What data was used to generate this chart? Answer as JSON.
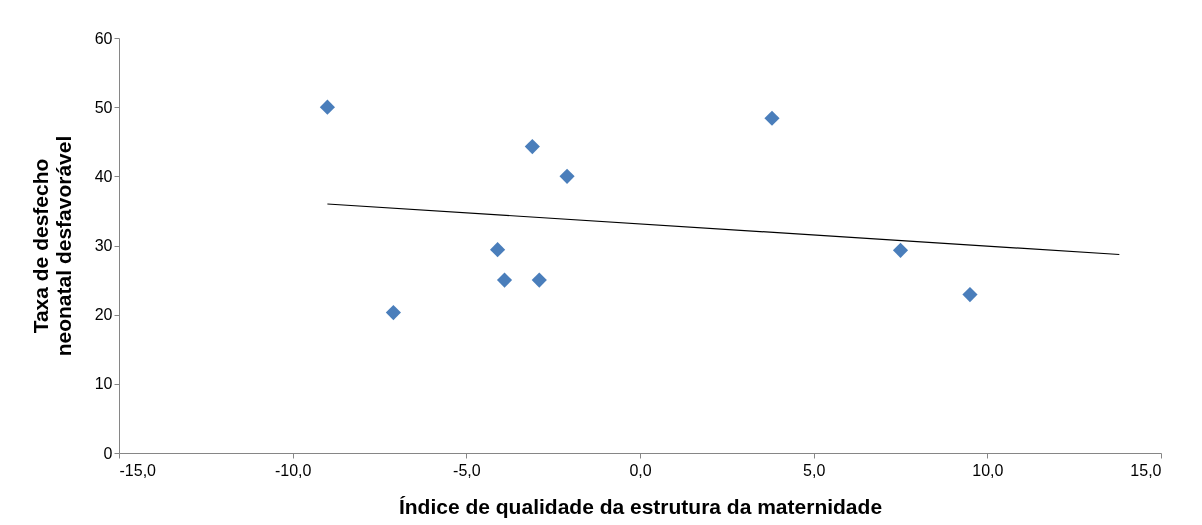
{
  "chart_data": {
    "type": "scatter",
    "xlabel": "Índice de qualidade da estrutura da maternidade",
    "ylabel": "Taxa de desfecho neonatal desfavorável",
    "x": [
      -9.0,
      -7.1,
      -4.1,
      -3.9,
      -3.1,
      -2.9,
      -2.1,
      3.8,
      7.5,
      9.5
    ],
    "series": [
      {
        "color": "#4a7ebb",
        "marker": "diamond",
        "values": [
          50.0,
          20.3,
          29.4,
          25.0,
          44.3,
          25.0,
          40.0,
          48.4,
          29.3,
          22.9
        ]
      },
      {
        "type": "line",
        "color": "#000000",
        "marker": "none",
        "x": [
          -9.0,
          13.8
        ],
        "values": [
          36.0,
          28.7
        ]
      }
    ],
    "grid": false,
    "xlim": [
      -15,
      15
    ],
    "xticks": [
      {
        "value": -15,
        "label": "-15,0"
      },
      {
        "value": -10,
        "label": "-10,0"
      },
      {
        "value": -5,
        "label": "-5,0"
      },
      {
        "value": 0,
        "label": "0,0"
      },
      {
        "value": 5,
        "label": "5,0"
      },
      {
        "value": 10,
        "label": "10,0"
      },
      {
        "value": 15,
        "label": "15,0"
      }
    ],
    "ylim": [
      0,
      60
    ],
    "yticks": [
      0,
      10,
      20,
      30,
      40,
      50,
      60
    ]
  }
}
